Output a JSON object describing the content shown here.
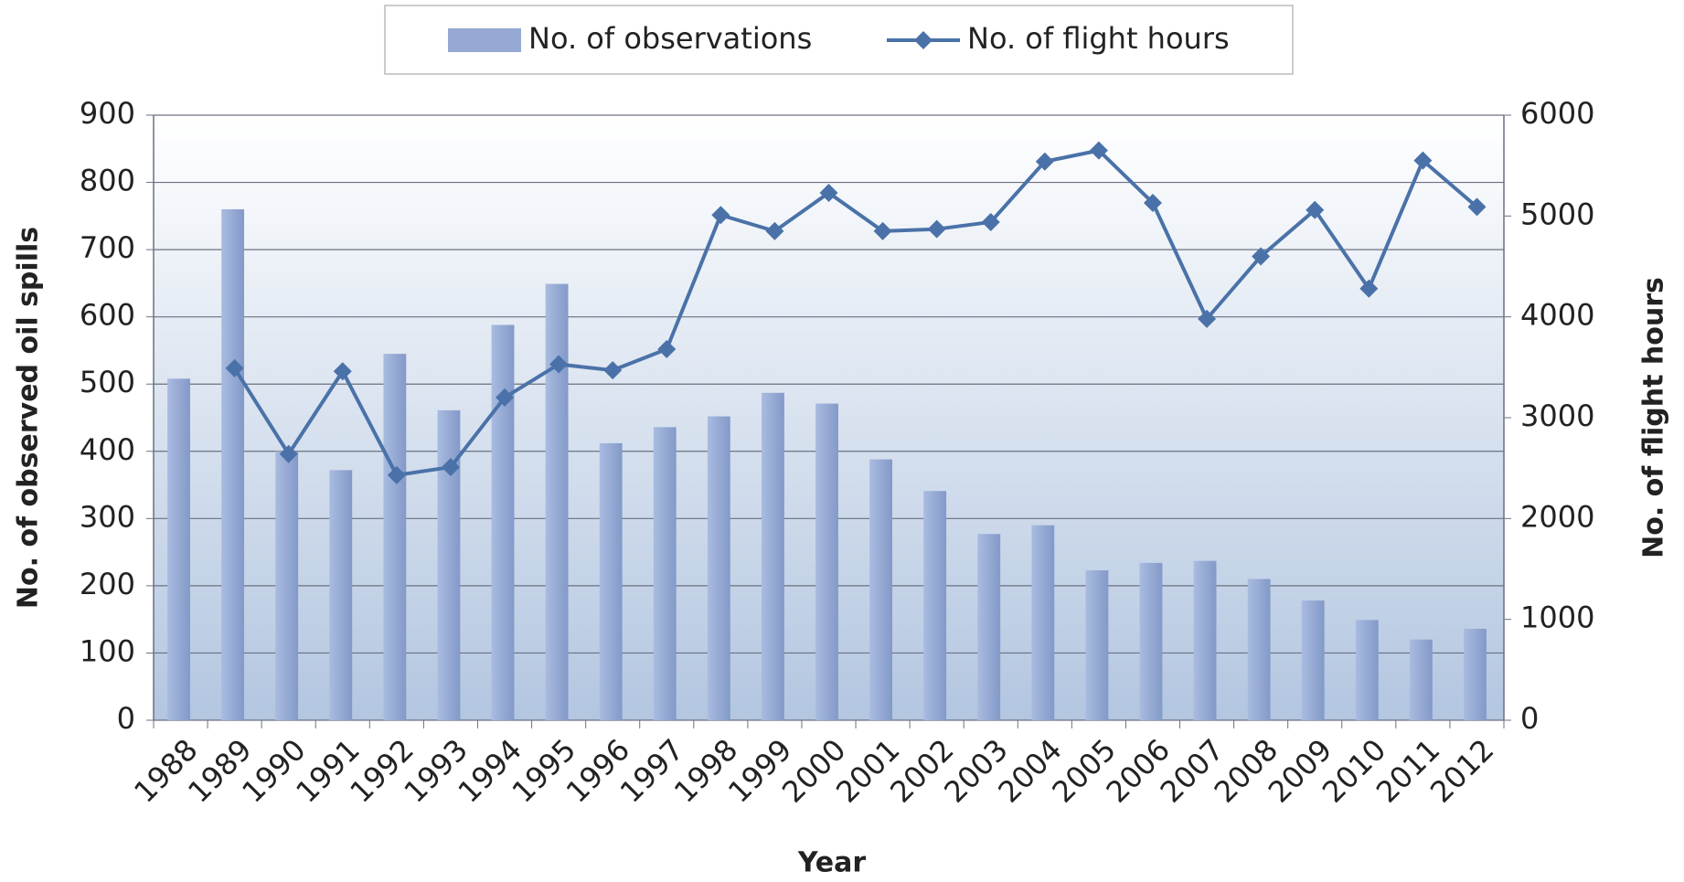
{
  "chart_data": {
    "type": "bar_line",
    "x_label": "Year",
    "y_label": "No. of observed oil spills",
    "y2_label": "No. of flight hours",
    "categories": [
      "1988",
      "1989",
      "1990",
      "1991",
      "1992",
      "1993",
      "1994",
      "1995",
      "1996",
      "1997",
      "1998",
      "1999",
      "2000",
      "2001",
      "2002",
      "2003",
      "2004",
      "2005",
      "2006",
      "2007",
      "2008",
      "2009",
      "2010",
      "2011",
      "2012"
    ],
    "series": [
      {
        "name": "No. of observations",
        "type": "bar",
        "color": "#95a9d4",
        "values": [
          508,
          760,
          400,
          372,
          545,
          461,
          588,
          649,
          412,
          436,
          452,
          487,
          471,
          388,
          341,
          277,
          290,
          223,
          234,
          237,
          210,
          178,
          149,
          120,
          136
        ]
      },
      {
        "name": "No. of flight hours",
        "type": "line",
        "axis": "y2",
        "color": "#4a72a8",
        "values": [
          null,
          3490,
          2640,
          3460,
          2430,
          2510,
          3200,
          3530,
          3470,
          3680,
          5010,
          4850,
          5230,
          4850,
          4870,
          4940,
          5540,
          5650,
          5130,
          3980,
          4600,
          5060,
          4280,
          5550,
          5090
        ]
      }
    ],
    "ylim": [
      0,
      900
    ],
    "yticks": [
      0,
      100,
      200,
      300,
      400,
      500,
      600,
      700,
      800,
      900
    ],
    "y2lim": [
      0,
      6000
    ],
    "y2ticks": [
      0,
      1000,
      2000,
      3000,
      4000,
      5000,
      6000
    ],
    "grid": true,
    "legend": "top"
  }
}
